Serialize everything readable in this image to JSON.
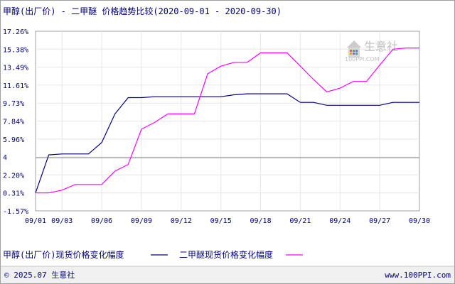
{
  "chart_data": {
    "type": "line",
    "title": "甲醇(出厂价) - 二甲醚 价格趋势比较(2020-09-01 - 2020-09-30)",
    "xlabel": "",
    "ylabel": "",
    "x_ticks": [
      "09/01",
      "09/03",
      "09/06",
      "09/09",
      "09/12",
      "09/15",
      "09/18",
      "09/21",
      "09/24",
      "09/27",
      "09/30"
    ],
    "y_ticks": [
      "17.26%",
      "15.38%",
      "13.49%",
      "11.61%",
      "9.73%",
      "7.84%",
      "5.96%",
      "4",
      "2.20%",
      "0.31%",
      "-1.57%"
    ],
    "ylim": [
      -1.57,
      17.26
    ],
    "reference_line": 4,
    "grid": true,
    "legend_position": "bottom",
    "series": [
      {
        "name": "甲醇(出厂价)现货价格变化幅度",
        "color": "#000080",
        "points": [
          [
            "09/01",
            0.31
          ],
          [
            "09/02",
            4.3
          ],
          [
            "09/03",
            4.4
          ],
          [
            "09/04",
            4.4
          ],
          [
            "09/05",
            4.4
          ],
          [
            "09/06",
            5.6
          ],
          [
            "09/07",
            8.6
          ],
          [
            "09/08",
            10.3
          ],
          [
            "09/09",
            10.3
          ],
          [
            "09/10",
            10.4
          ],
          [
            "09/11",
            10.4
          ],
          [
            "09/12",
            10.4
          ],
          [
            "09/13",
            10.4
          ],
          [
            "09/14",
            10.4
          ],
          [
            "09/15",
            10.4
          ],
          [
            "09/16",
            10.6
          ],
          [
            "09/17",
            10.7
          ],
          [
            "09/18",
            10.7
          ],
          [
            "09/19",
            10.7
          ],
          [
            "09/20",
            10.7
          ],
          [
            "09/21",
            9.8
          ],
          [
            "09/22",
            9.8
          ],
          [
            "09/23",
            9.5
          ],
          [
            "09/24",
            9.5
          ],
          [
            "09/25",
            9.5
          ],
          [
            "09/26",
            9.5
          ],
          [
            "09/27",
            9.5
          ],
          [
            "09/28",
            9.8
          ],
          [
            "09/29",
            9.8
          ],
          [
            "09/30",
            9.8
          ]
        ]
      },
      {
        "name": "二甲醚现货价格变化幅度",
        "color": "#ff00ff",
        "points": [
          [
            "09/01",
            0.31
          ],
          [
            "09/02",
            0.31
          ],
          [
            "09/03",
            0.6
          ],
          [
            "09/04",
            1.2
          ],
          [
            "09/05",
            1.2
          ],
          [
            "09/06",
            1.2
          ],
          [
            "09/07",
            2.6
          ],
          [
            "09/08",
            3.3
          ],
          [
            "09/09",
            7.0
          ],
          [
            "09/10",
            7.7
          ],
          [
            "09/11",
            8.6
          ],
          [
            "09/12",
            8.6
          ],
          [
            "09/13",
            8.6
          ],
          [
            "09/14",
            12.8
          ],
          [
            "09/15",
            13.6
          ],
          [
            "09/16",
            14.0
          ],
          [
            "09/17",
            14.0
          ],
          [
            "09/18",
            15.0
          ],
          [
            "09/19",
            15.0
          ],
          [
            "09/20",
            15.0
          ],
          [
            "09/21",
            13.6
          ],
          [
            "09/22",
            12.2
          ],
          [
            "09/23",
            10.9
          ],
          [
            "09/24",
            11.3
          ],
          [
            "09/25",
            12.0
          ],
          [
            "09/26",
            12.0
          ],
          [
            "09/27",
            13.7
          ],
          [
            "09/28",
            15.38
          ],
          [
            "09/29",
            15.5
          ],
          [
            "09/30",
            15.5
          ]
        ]
      }
    ]
  },
  "legend": [
    {
      "label": "甲醇(出厂价)现货价格变化幅度",
      "color": "#000080"
    },
    {
      "label": "二甲醚现货价格变化幅度",
      "color": "#ff00ff"
    }
  ],
  "footer": {
    "copyright": "© 2025.07 生意社",
    "website": "www.100PPI.com"
  },
  "watermark": {
    "brand": "生意社",
    "sub": "100PPI.COM"
  }
}
